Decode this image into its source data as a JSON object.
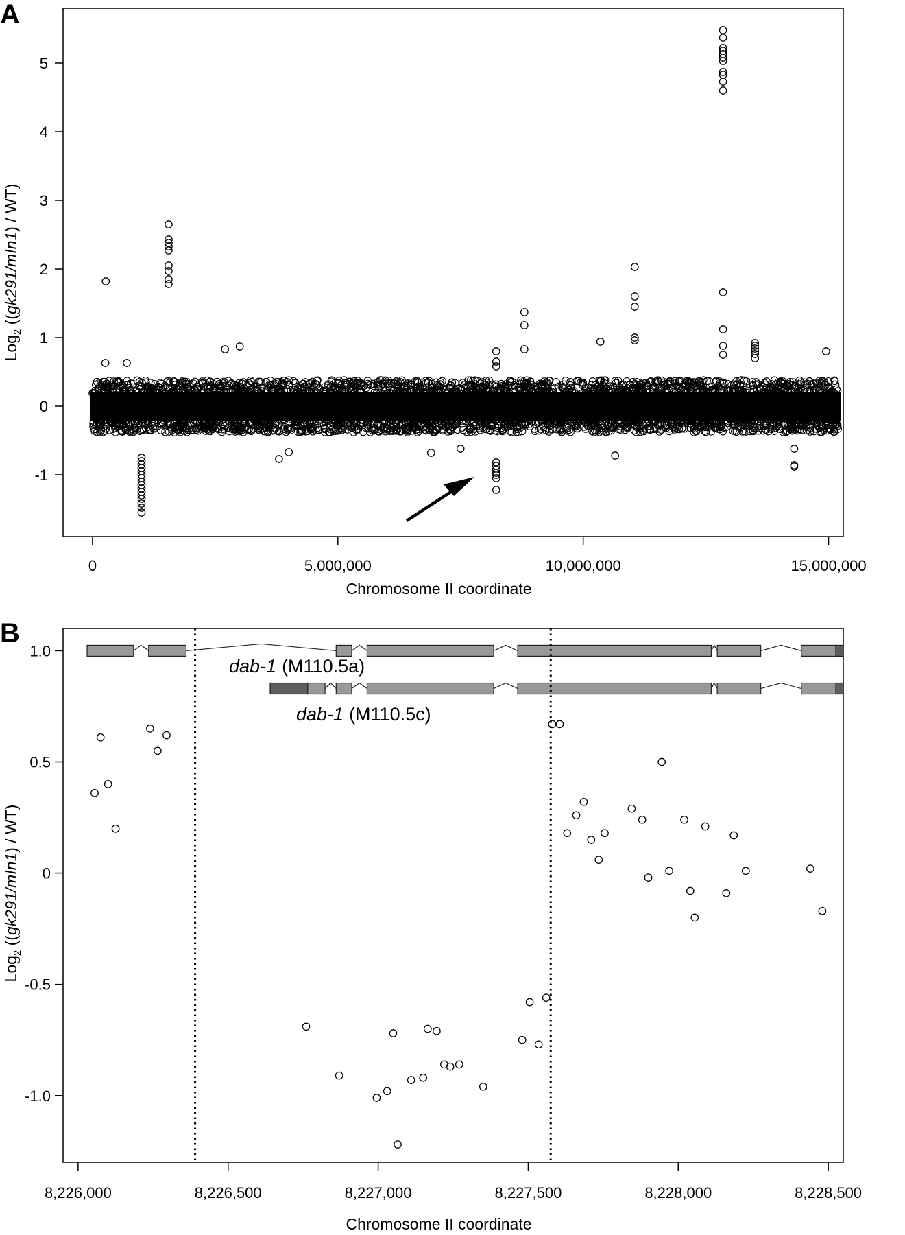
{
  "panels": [
    {
      "letter": "A",
      "ylabel": "Log2 ((gk291/mIn1) / WT)",
      "xlabel": "Chromosome II coordinate"
    },
    {
      "letter": "B",
      "ylabel": "Log2 ((gk291/mIn1) / WT)",
      "xlabel": "Chromosome II coordinate"
    }
  ],
  "genes": [
    {
      "name": "dab-1",
      "isoform": "(M110.5a)"
    },
    {
      "name": "dab-1",
      "isoform": "(M110.5c)"
    }
  ],
  "colors": {
    "exon": "#999999",
    "utr": "#5e5e5e",
    "points": "#000000"
  },
  "chart_data": [
    {
      "panel": "A",
      "type": "scatter",
      "title": "",
      "xlabel": "Chromosome II coordinate",
      "ylabel": "Log2 ((gk291/mIn1) / WT)",
      "xlim": [
        -600000,
        15300000
      ],
      "ylim": [
        -1.9,
        5.8
      ],
      "xticks": [
        0,
        5000000,
        10000000,
        15000000
      ],
      "xtick_labels": [
        "0",
        "5,000,000",
        "10,000,000",
        "15,000,000"
      ],
      "yticks": [
        -1,
        0,
        1,
        2,
        3,
        4,
        5
      ],
      "ytick_labels": [
        "-1",
        "0",
        "1",
        "2",
        "3",
        "4",
        "5"
      ],
      "grid": false,
      "baseline_band": {
        "x_range": [
          0,
          15200000
        ],
        "y_range": [
          -0.3,
          0.3
        ],
        "description": "dense cloud of probe values around 0"
      },
      "annotation": "arrow pointing to the probe cluster near 8,227,000 with log2 ratio about -1",
      "arrow": {
        "from": [
          6700000,
          -1.67
        ],
        "to": [
          8000000,
          -1.07
        ]
      },
      "points": [
        [
          1000000,
          -0.75
        ],
        [
          1000000,
          -0.8
        ],
        [
          1000000,
          -0.85
        ],
        [
          1000000,
          -0.9
        ],
        [
          1000000,
          -0.95
        ],
        [
          1000000,
          -1.0
        ],
        [
          1000000,
          -1.05
        ],
        [
          1000000,
          -1.1
        ],
        [
          1000000,
          -1.15
        ],
        [
          1000000,
          -1.2
        ],
        [
          1000000,
          -1.25
        ],
        [
          1000000,
          -1.3
        ],
        [
          1000000,
          -1.35
        ],
        [
          1000000,
          -1.42
        ],
        [
          1000000,
          -1.48
        ],
        [
          1000000,
          -1.55
        ],
        [
          270000,
          1.82
        ],
        [
          1550000,
          2.65
        ],
        [
          1550000,
          2.43
        ],
        [
          1550000,
          2.38
        ],
        [
          1550000,
          2.33
        ],
        [
          1550000,
          2.27
        ],
        [
          1550000,
          2.05
        ],
        [
          1550000,
          1.97
        ],
        [
          1550000,
          1.85
        ],
        [
          1550000,
          1.78
        ],
        [
          8800000,
          1.37
        ],
        [
          8800000,
          1.18
        ],
        [
          8800000,
          0.83
        ],
        [
          11050000,
          2.03
        ],
        [
          11050000,
          1.6
        ],
        [
          11050000,
          1.45
        ],
        [
          11050000,
          1.0
        ],
        [
          11050000,
          0.96
        ],
        [
          10350000,
          0.94
        ],
        [
          12850000,
          5.48
        ],
        [
          12850000,
          5.37
        ],
        [
          12850000,
          5.22
        ],
        [
          12850000,
          5.18
        ],
        [
          12850000,
          5.13
        ],
        [
          12850000,
          5.08
        ],
        [
          12850000,
          5.03
        ],
        [
          12850000,
          4.87
        ],
        [
          12850000,
          4.83
        ],
        [
          12850000,
          4.73
        ],
        [
          12850000,
          4.6
        ],
        [
          12850000,
          1.66
        ],
        [
          12850000,
          1.12
        ],
        [
          12850000,
          0.88
        ],
        [
          12850000,
          0.75
        ],
        [
          8227000,
          -0.82
        ],
        [
          8227000,
          -0.87
        ],
        [
          8227000,
          -0.92
        ],
        [
          8227000,
          -0.97
        ],
        [
          8227000,
          -1.0
        ],
        [
          8227000,
          -1.05
        ],
        [
          8227000,
          -1.22
        ],
        [
          8227000,
          0.8
        ],
        [
          8227000,
          0.65
        ],
        [
          8227000,
          0.58
        ],
        [
          13500000,
          0.92
        ],
        [
          13500000,
          0.88
        ],
        [
          13500000,
          0.84
        ],
        [
          13500000,
          0.8
        ],
        [
          13500000,
          0.76
        ],
        [
          13500000,
          0.7
        ],
        [
          14300000,
          -0.86
        ],
        [
          14300000,
          -0.88
        ],
        [
          14300000,
          -0.62
        ],
        [
          2700000,
          0.83
        ],
        [
          3000000,
          0.87
        ],
        [
          14950000,
          0.8
        ],
        [
          260000,
          0.63
        ],
        [
          700000,
          0.63
        ],
        [
          3800000,
          -0.77
        ],
        [
          4000000,
          -0.67
        ],
        [
          6900000,
          -0.68
        ],
        [
          7500000,
          -0.62
        ],
        [
          10650000,
          -0.72
        ]
      ]
    },
    {
      "panel": "B",
      "type": "scatter",
      "title": "",
      "xlabel": "Chromosome II coordinate",
      "ylabel": "Log2 ((gk291/mIn1) / WT)",
      "xlim": [
        8225950,
        8228550
      ],
      "ylim": [
        -1.3,
        1.1
      ],
      "xticks": [
        8226000,
        8226500,
        8227000,
        8227500,
        8228000,
        8228500
      ],
      "xtick_labels": [
        "8,226,000",
        "8,226,500",
        "8,227,000",
        "8,227,500",
        "8,228,000",
        "8,228,500"
      ],
      "yticks": [
        -1.0,
        -0.5,
        0,
        0.5,
        1.0
      ],
      "ytick_labels": [
        "-1.0",
        "-0.5",
        "0",
        "0.5",
        "1.0"
      ],
      "grid": false,
      "deletion_breakpoints": [
        8226390,
        8227575
      ],
      "points": [
        [
          8226055,
          0.36
        ],
        [
          8226075,
          0.61
        ],
        [
          8226100,
          0.4
        ],
        [
          8226125,
          0.2
        ],
        [
          8226240,
          0.65
        ],
        [
          8226265,
          0.55
        ],
        [
          8226295,
          0.62
        ],
        [
          8226760,
          -0.69
        ],
        [
          8226870,
          -0.91
        ],
        [
          8226995,
          -1.01
        ],
        [
          8227030,
          -0.98
        ],
        [
          8227050,
          -0.72
        ],
        [
          8227110,
          -0.93
        ],
        [
          8227150,
          -0.92
        ],
        [
          8227165,
          -0.7
        ],
        [
          8227195,
          -0.71
        ],
        [
          8227220,
          -0.86
        ],
        [
          8227240,
          -0.87
        ],
        [
          8227270,
          -0.86
        ],
        [
          8227350,
          -0.96
        ],
        [
          8227065,
          -1.22
        ],
        [
          8227480,
          -0.75
        ],
        [
          8227505,
          -0.58
        ],
        [
          8227535,
          -0.77
        ],
        [
          8227560,
          -0.56
        ],
        [
          8227580,
          0.67
        ],
        [
          8227605,
          0.67
        ],
        [
          8227630,
          0.18
        ],
        [
          8227660,
          0.26
        ],
        [
          8227685,
          0.32
        ],
        [
          8227710,
          0.15
        ],
        [
          8227735,
          0.06
        ],
        [
          8227755,
          0.18
        ],
        [
          8227845,
          0.29
        ],
        [
          8227880,
          0.24
        ],
        [
          8227900,
          -0.02
        ],
        [
          8227945,
          0.5
        ],
        [
          8227970,
          0.01
        ],
        [
          8228020,
          0.24
        ],
        [
          8228040,
          -0.08
        ],
        [
          8228055,
          -0.2
        ],
        [
          8228090,
          0.21
        ],
        [
          8228160,
          -0.09
        ],
        [
          8228185,
          0.17
        ],
        [
          8228225,
          0.01
        ],
        [
          8228440,
          0.02
        ],
        [
          8228480,
          -0.17
        ]
      ],
      "gene_models": [
        {
          "label": "dab-1 (M110.5a)",
          "y": 1.0,
          "exons": [
            [
              8226030,
              8226185
            ],
            [
              8226235,
              8226360
            ],
            [
              8226860,
              8226912
            ],
            [
              8226963,
              8227385
            ],
            [
              8227465,
              8228110
            ],
            [
              8228130,
              8228275
            ],
            [
              8228410,
              8228525
            ]
          ],
          "utrs": [
            [
              8228525,
              8228600
            ]
          ]
        },
        {
          "label": "dab-1 (M110.5c)",
          "y": 0.83,
          "exons": [
            [
              8226765,
              8226823
            ],
            [
              8226860,
              8226912
            ],
            [
              8226963,
              8227385
            ],
            [
              8227465,
              8228110
            ],
            [
              8228130,
              8228275
            ],
            [
              8228410,
              8228525
            ]
          ],
          "utrs": [
            [
              8226640,
              8226765
            ],
            [
              8228525,
              8228600
            ]
          ]
        }
      ]
    }
  ]
}
